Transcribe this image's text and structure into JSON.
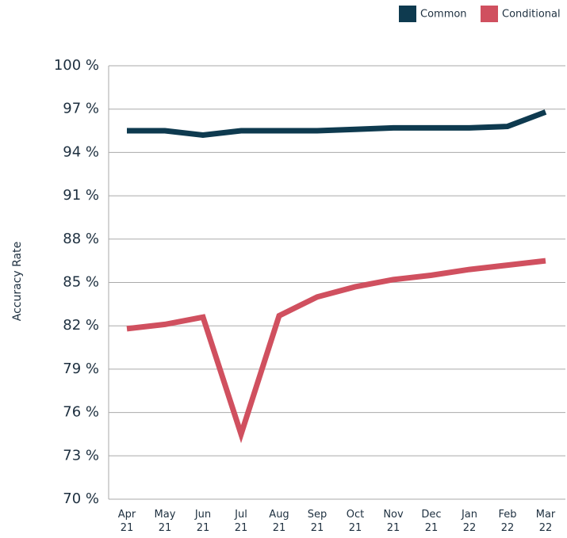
{
  "chart_data": {
    "type": "line",
    "y_label": "Accuracy Rate",
    "categories": [
      "Apr 21",
      "May 21",
      "Jun 21",
      "Jul 21",
      "Aug 21",
      "Sep 21",
      "Oct 21",
      "Nov 21",
      "Dec 21",
      "Jan 22",
      "Feb 22",
      "Mar 22"
    ],
    "series": [
      {
        "name": "Common",
        "color": "#0e3a4f",
        "values": [
          95.5,
          95.5,
          95.2,
          95.5,
          95.5,
          95.5,
          95.6,
          95.7,
          95.7,
          95.7,
          95.8,
          96.8
        ]
      },
      {
        "name": "Conditional",
        "color": "#d0505f",
        "values": [
          81.8,
          82.1,
          82.6,
          74.5,
          82.7,
          84.0,
          84.7,
          85.2,
          85.5,
          85.9,
          86.2,
          86.5
        ]
      }
    ],
    "ylim": [
      70,
      100
    ],
    "yticks": [
      {
        "value": 70,
        "label": "70 %"
      },
      {
        "value": 73,
        "label": "73 %"
      },
      {
        "value": 76,
        "label": "76 %"
      },
      {
        "value": 79,
        "label": "79 %"
      },
      {
        "value": 82,
        "label": "82 %"
      },
      {
        "value": 85,
        "label": "85 %"
      },
      {
        "value": 88,
        "label": "88 %"
      },
      {
        "value": 91,
        "label": "91 %"
      },
      {
        "value": 94,
        "label": "94 %"
      },
      {
        "value": 97,
        "label": "97 %"
      },
      {
        "value": 100,
        "label": "100 %"
      }
    ],
    "grid": true,
    "legend": "top-right"
  }
}
